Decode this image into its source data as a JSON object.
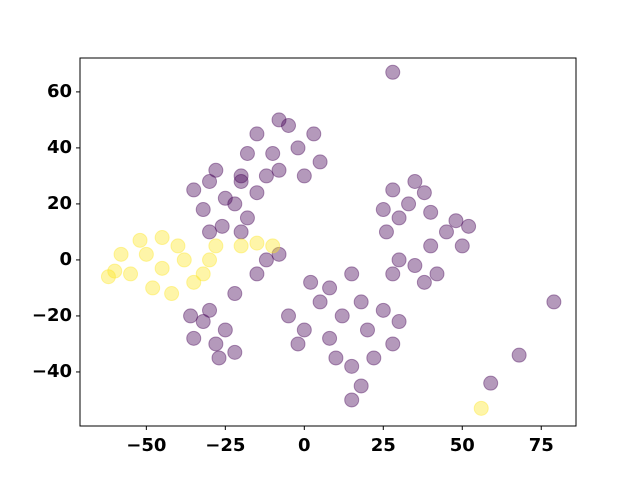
{
  "chart_data": {
    "type": "scatter",
    "xlim": [
      -71,
      86
    ],
    "ylim": [
      -59.3,
      72.1
    ],
    "xticks": [
      {
        "value": -50,
        "label": "−50"
      },
      {
        "value": -25,
        "label": "−25"
      },
      0,
      25,
      50,
      75
    ],
    "yticks": [
      {
        "value": -40,
        "label": "−40"
      },
      {
        "value": -20,
        "label": "−20"
      },
      0,
      20,
      40,
      60
    ],
    "grid": false,
    "series": [
      {
        "color": "#440154",
        "x": [
          -25,
          -30,
          -20,
          -32,
          -18,
          -26,
          -35,
          -22,
          -28,
          -15,
          -30,
          -20,
          -10,
          -5,
          -15,
          -2,
          -12,
          -8,
          0,
          -18,
          -8,
          3,
          -20,
          5,
          -32,
          -28,
          -35,
          -25,
          -30,
          -22,
          -36,
          -27,
          33,
          28,
          38,
          30,
          40,
          25,
          35,
          45,
          50,
          40,
          48,
          52,
          35,
          30,
          38,
          42,
          28,
          26,
          5,
          12,
          0,
          8,
          18,
          -5,
          2,
          15,
          20,
          25,
          22,
          28,
          15,
          10,
          18,
          15,
          -2,
          30,
          8,
          28,
          79,
          68,
          59,
          -12,
          -8,
          -22,
          -15
        ],
        "y": [
          22,
          28,
          30,
          18,
          15,
          12,
          25,
          20,
          32,
          24,
          10,
          10,
          38,
          48,
          45,
          40,
          30,
          32,
          30,
          38,
          50,
          45,
          28,
          35,
          -22,
          -30,
          -28,
          -25,
          -18,
          -33,
          -20,
          -35,
          20,
          25,
          24,
          15,
          17,
          18,
          28,
          10,
          5,
          5,
          14,
          12,
          -2,
          0,
          -8,
          -5,
          -5,
          10,
          -15,
          -20,
          -25,
          -28,
          -15,
          -20,
          -8,
          -5,
          -25,
          -18,
          -35,
          -30,
          -38,
          -35,
          -45,
          -50,
          -30,
          -22,
          -10,
          67,
          -15,
          -34,
          -44,
          0,
          2,
          -12,
          -5
        ]
      },
      {
        "color": "#fde725",
        "x": [
          -45,
          -50,
          -40,
          -55,
          -60,
          -35,
          -48,
          -42,
          -38,
          -52,
          -30,
          -28,
          -20,
          -15,
          -10,
          -32,
          -45,
          -58,
          -62,
          56
        ],
        "y": [
          -3,
          2,
          5,
          -5,
          -4,
          -8,
          -10,
          -12,
          0,
          7,
          0,
          5,
          5,
          6,
          5,
          -5,
          8,
          2,
          -6,
          -53
        ]
      }
    ]
  }
}
